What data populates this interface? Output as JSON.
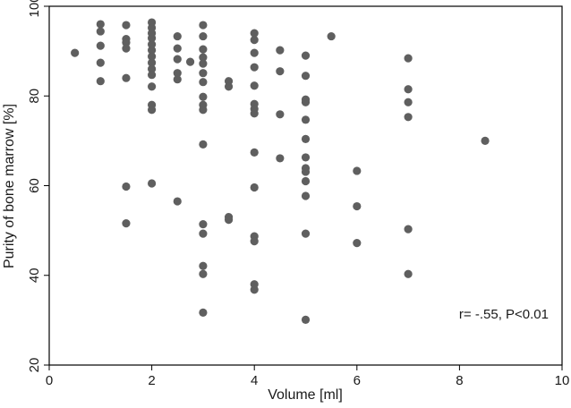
{
  "chart_data": {
    "type": "scatter",
    "title": "",
    "xlabel": "Volume [ml]",
    "ylabel": "Purity of bone marrow [%]",
    "xlim": [
      0,
      10
    ],
    "ylim": [
      20,
      100
    ],
    "xticks": [
      0,
      2,
      4,
      6,
      8,
      10
    ],
    "yticks": [
      20,
      40,
      60,
      80,
      100
    ],
    "grid": false,
    "annotation": "r= -.55, P<0.01",
    "point_color": "#5f5f5f",
    "points": [
      {
        "x": 0.5,
        "y": 89.6
      },
      {
        "x": 1,
        "y": 96.0
      },
      {
        "x": 1,
        "y": 94.4
      },
      {
        "x": 1,
        "y": 91.2
      },
      {
        "x": 1,
        "y": 87.4
      },
      {
        "x": 1,
        "y": 83.3
      },
      {
        "x": 1.5,
        "y": 95.8
      },
      {
        "x": 1.5,
        "y": 92.7
      },
      {
        "x": 1.5,
        "y": 91.9
      },
      {
        "x": 1.5,
        "y": 90.6
      },
      {
        "x": 1.5,
        "y": 84.0
      },
      {
        "x": 1.5,
        "y": 59.8
      },
      {
        "x": 1.5,
        "y": 51.6
      },
      {
        "x": 2,
        "y": 96.4
      },
      {
        "x": 2,
        "y": 95.2
      },
      {
        "x": 2,
        "y": 94.0
      },
      {
        "x": 2,
        "y": 92.9
      },
      {
        "x": 2,
        "y": 91.5
      },
      {
        "x": 2,
        "y": 90.2
      },
      {
        "x": 2,
        "y": 88.8
      },
      {
        "x": 2,
        "y": 87.4
      },
      {
        "x": 2,
        "y": 86.0
      },
      {
        "x": 2,
        "y": 84.7
      },
      {
        "x": 2,
        "y": 82.1
      },
      {
        "x": 2,
        "y": 78.0
      },
      {
        "x": 2,
        "y": 76.9
      },
      {
        "x": 2,
        "y": 60.5
      },
      {
        "x": 2.5,
        "y": 93.3
      },
      {
        "x": 2.5,
        "y": 90.6
      },
      {
        "x": 2.5,
        "y": 88.2
      },
      {
        "x": 2.5,
        "y": 85.1
      },
      {
        "x": 2.5,
        "y": 83.7
      },
      {
        "x": 2.5,
        "y": 56.5
      },
      {
        "x": 2.75,
        "y": 87.6
      },
      {
        "x": 3,
        "y": 95.8
      },
      {
        "x": 3,
        "y": 93.3
      },
      {
        "x": 3,
        "y": 90.4
      },
      {
        "x": 3,
        "y": 88.6
      },
      {
        "x": 3,
        "y": 87.2
      },
      {
        "x": 3,
        "y": 85.1
      },
      {
        "x": 3,
        "y": 83.1
      },
      {
        "x": 3,
        "y": 79.8
      },
      {
        "x": 3,
        "y": 78.0
      },
      {
        "x": 3,
        "y": 76.9
      },
      {
        "x": 3,
        "y": 69.2
      },
      {
        "x": 3,
        "y": 51.4
      },
      {
        "x": 3,
        "y": 49.3
      },
      {
        "x": 3,
        "y": 42.1
      },
      {
        "x": 3,
        "y": 40.3
      },
      {
        "x": 3,
        "y": 31.7
      },
      {
        "x": 3.5,
        "y": 83.3
      },
      {
        "x": 3.5,
        "y": 82.1
      },
      {
        "x": 3.5,
        "y": 53.0
      },
      {
        "x": 3.5,
        "y": 52.4
      },
      {
        "x": 4,
        "y": 94.0
      },
      {
        "x": 4,
        "y": 92.5
      },
      {
        "x": 4,
        "y": 89.6
      },
      {
        "x": 4,
        "y": 86.4
      },
      {
        "x": 4,
        "y": 82.3
      },
      {
        "x": 4,
        "y": 78.2
      },
      {
        "x": 4,
        "y": 77.1
      },
      {
        "x": 4,
        "y": 76.1
      },
      {
        "x": 4,
        "y": 67.4
      },
      {
        "x": 4,
        "y": 59.6
      },
      {
        "x": 4,
        "y": 48.7
      },
      {
        "x": 4,
        "y": 47.6
      },
      {
        "x": 4,
        "y": 38.0
      },
      {
        "x": 4,
        "y": 36.8
      },
      {
        "x": 4.5,
        "y": 90.2
      },
      {
        "x": 4.5,
        "y": 85.5
      },
      {
        "x": 4.5,
        "y": 75.9
      },
      {
        "x": 4.5,
        "y": 66.1
      },
      {
        "x": 5,
        "y": 89.0
      },
      {
        "x": 5,
        "y": 84.5
      },
      {
        "x": 5,
        "y": 79.2
      },
      {
        "x": 5,
        "y": 78.6
      },
      {
        "x": 5,
        "y": 74.7
      },
      {
        "x": 5,
        "y": 70.4
      },
      {
        "x": 5,
        "y": 66.3
      },
      {
        "x": 5,
        "y": 63.9
      },
      {
        "x": 5,
        "y": 63.1
      },
      {
        "x": 5,
        "y": 61.0
      },
      {
        "x": 5,
        "y": 57.7
      },
      {
        "x": 5,
        "y": 49.3
      },
      {
        "x": 5,
        "y": 30.1
      },
      {
        "x": 5.5,
        "y": 93.3
      },
      {
        "x": 6,
        "y": 63.3
      },
      {
        "x": 6,
        "y": 55.4
      },
      {
        "x": 6,
        "y": 47.2
      },
      {
        "x": 7,
        "y": 88.4
      },
      {
        "x": 7,
        "y": 81.5
      },
      {
        "x": 7,
        "y": 78.6
      },
      {
        "x": 7,
        "y": 75.3
      },
      {
        "x": 7,
        "y": 50.3
      },
      {
        "x": 7,
        "y": 40.3
      },
      {
        "x": 8.5,
        "y": 70.0
      }
    ]
  }
}
